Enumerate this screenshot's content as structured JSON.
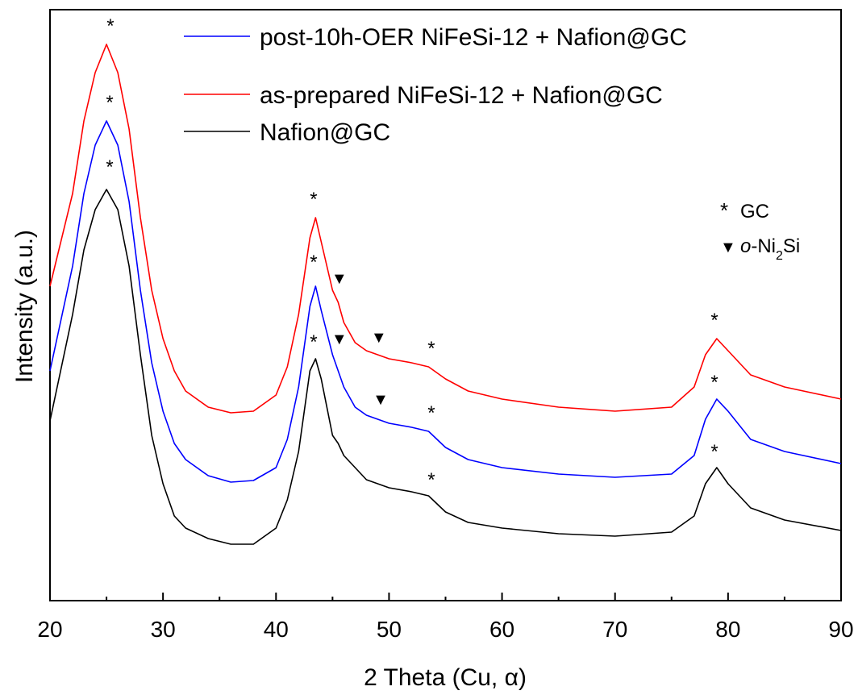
{
  "chart_data": {
    "type": "line",
    "x_label": "2 Theta (Cu, α)",
    "y_label": "Intensity (a.u.)",
    "x": [
      20,
      22,
      23,
      24,
      25,
      26,
      27,
      28,
      29,
      30,
      31,
      32,
      34,
      36,
      38,
      40,
      41,
      42,
      43,
      43.5,
      44,
      45,
      45.5,
      46,
      47,
      48,
      50,
      52,
      53.5,
      55,
      57,
      60,
      65,
      70,
      75,
      77,
      78,
      79,
      80,
      82,
      85,
      90
    ],
    "series": [
      {
        "name": "post-10h-OER NiFeSi-12 + Nafion@GC",
        "color": "#0000ff",
        "values": [
          285,
          415,
          505,
          565,
          595,
          565,
          495,
          385,
          295,
          235,
          195,
          175,
          155,
          147,
          149,
          165,
          200,
          265,
          365,
          390,
          360,
          305,
          285,
          265,
          240,
          230,
          220,
          215,
          210,
          190,
          175,
          165,
          157,
          153,
          157,
          180,
          225,
          250,
          235,
          200,
          185,
          170
        ]
      },
      {
        "name": "as-prepared NiFeSi-12 + Nafion@GC",
        "color": "#ff0000",
        "values": [
          390,
          505,
          595,
          655,
          690,
          655,
          585,
          475,
          385,
          325,
          285,
          260,
          240,
          233,
          235,
          255,
          290,
          355,
          450,
          475,
          445,
          385,
          370,
          345,
          320,
          310,
          300,
          295,
          290,
          275,
          260,
          250,
          240,
          235,
          240,
          265,
          305,
          325,
          310,
          280,
          265,
          250
        ]
      },
      {
        "name": "Nafion@GC",
        "color": "#000000",
        "values": [
          223,
          355,
          435,
          485,
          510,
          485,
          415,
          305,
          205,
          145,
          105,
          90,
          77,
          70,
          70,
          90,
          125,
          185,
          285,
          300,
          275,
          205,
          195,
          180,
          165,
          150,
          140,
          135,
          130,
          110,
          97,
          90,
          83,
          80,
          85,
          105,
          145,
          165,
          145,
          115,
          100,
          87
        ]
      }
    ],
    "xlim": [
      20,
      90
    ],
    "ylim": [
      0,
      733
    ],
    "xticks": [
      20,
      30,
      40,
      50,
      60,
      70,
      80,
      90
    ],
    "xminorticks": [
      25,
      35,
      45,
      55,
      65,
      75,
      85
    ],
    "legend": "upper center",
    "annotations": [
      {
        "text": "*",
        "x": 25.35,
        "y": 705
      },
      {
        "text": "*",
        "x": 43.33,
        "y": 490
      },
      {
        "text": "*",
        "x": 53.75,
        "y": 305
      },
      {
        "text": "*",
        "x": 78.8,
        "y": 340
      },
      {
        "text": "*",
        "x": 25.28,
        "y": 610
      },
      {
        "text": "*",
        "x": 43.33,
        "y": 412
      },
      {
        "text": "*",
        "x": 53.75,
        "y": 225
      },
      {
        "text": "*",
        "x": 78.8,
        "y": 263
      },
      {
        "text": "*",
        "x": 25.28,
        "y": 530
      },
      {
        "text": "*",
        "x": 43.33,
        "y": 313
      },
      {
        "text": "*",
        "x": 53.75,
        "y": 142
      },
      {
        "text": "*",
        "x": 78.8,
        "y": 177
      },
      {
        "text": "▼",
        "x": 45.6,
        "y": 393
      },
      {
        "text": "▼",
        "x": 45.6,
        "y": 318
      },
      {
        "text": "▼",
        "x": 49.1,
        "y": 320
      },
      {
        "text": "▼",
        "x": 49.26,
        "y": 243
      }
    ],
    "marker_legend": [
      {
        "symbol": "*",
        "parts": [
          "GC"
        ]
      },
      {
        "symbol": "▼",
        "parts": [
          "o",
          "-Ni",
          "2",
          "Si"
        ]
      }
    ]
  }
}
